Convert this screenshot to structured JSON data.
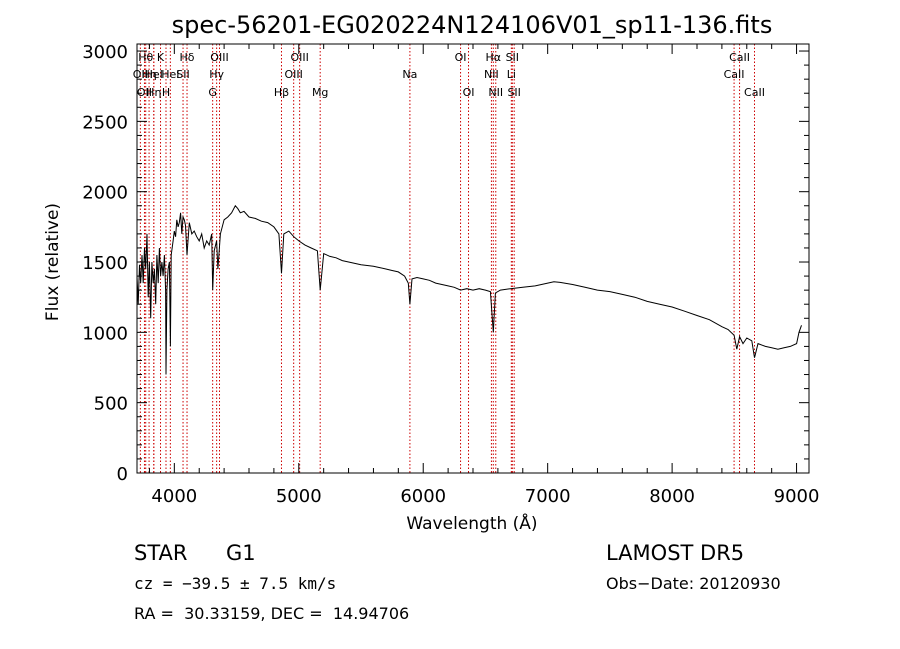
{
  "chart_data": {
    "type": "line",
    "title": "spec-56201-EG020224N124106V01_sp11-136.fits",
    "xlabel": "Wavelength (Å)",
    "ylabel": "Flux (relative)",
    "xlim": [
      3700,
      9100
    ],
    "ylim": [
      0,
      3050
    ],
    "x_ticks": [
      4000,
      5000,
      6000,
      7000,
      8000,
      9000
    ],
    "y_ticks": [
      0,
      500,
      1000,
      1500,
      2000,
      2500,
      3000
    ],
    "grid": false,
    "series": [
      {
        "x": [
          3700,
          3710,
          3720,
          3730,
          3740,
          3750,
          3760,
          3770,
          3780,
          3790,
          3800,
          3810,
          3820,
          3830,
          3840,
          3850,
          3860,
          3870,
          3880,
          3890,
          3900,
          3910,
          3920,
          3930,
          3933,
          3940,
          3950,
          3960,
          3968,
          3975,
          3990,
          4000,
          4010,
          4020,
          4030,
          4040,
          4050,
          4060,
          4070,
          4080,
          4090,
          4102,
          4110,
          4120,
          4140,
          4160,
          4180,
          4200,
          4220,
          4240,
          4260,
          4280,
          4300,
          4308,
          4320,
          4340,
          4350,
          4370,
          4400,
          4430,
          4460,
          4490,
          4510,
          4530,
          4560,
          4600,
          4650,
          4700,
          4750,
          4800,
          4840,
          4861,
          4880,
          4920,
          4960,
          5000,
          5050,
          5100,
          5150,
          5172,
          5200,
          5250,
          5300,
          5350,
          5400,
          5450,
          5500,
          5550,
          5600,
          5650,
          5700,
          5750,
          5800,
          5850,
          5880,
          5893,
          5910,
          5950,
          6000,
          6050,
          6100,
          6150,
          6200,
          6250,
          6300,
          6350,
          6400,
          6450,
          6500,
          6540,
          6563,
          6580,
          6620,
          6700,
          6800,
          6900,
          7000,
          7050,
          7100,
          7200,
          7300,
          7400,
          7500,
          7600,
          7700,
          7800,
          7900,
          8000,
          8100,
          8200,
          8300,
          8400,
          8450,
          8498,
          8520,
          8542,
          8570,
          8600,
          8640,
          8662,
          8690,
          8750,
          8800,
          8850,
          8900,
          8950,
          9000,
          9020,
          9040
        ],
        "y": [
          1400,
          1200,
          1480,
          1350,
          1550,
          1350,
          1600,
          1450,
          1700,
          1250,
          1500,
          1100,
          1500,
          1350,
          1450,
          1200,
          1550,
          1350,
          1600,
          1400,
          1500,
          1400,
          1550,
          1300,
          700,
          1300,
          1450,
          1500,
          900,
          1550,
          1650,
          1720,
          1680,
          1800,
          1750,
          1780,
          1850,
          1700,
          1820,
          1800,
          1760,
          1550,
          1650,
          1780,
          1700,
          1720,
          1680,
          1650,
          1700,
          1600,
          1650,
          1620,
          1700,
          1300,
          1580,
          1650,
          1450,
          1700,
          1800,
          1820,
          1850,
          1900,
          1880,
          1850,
          1860,
          1820,
          1810,
          1790,
          1780,
          1750,
          1700,
          1420,
          1700,
          1720,
          1680,
          1650,
          1620,
          1600,
          1580,
          1300,
          1560,
          1540,
          1530,
          1510,
          1500,
          1490,
          1480,
          1475,
          1470,
          1460,
          1450,
          1440,
          1430,
          1400,
          1350,
          1200,
          1380,
          1390,
          1380,
          1370,
          1350,
          1340,
          1330,
          1320,
          1300,
          1310,
          1300,
          1310,
          1300,
          1290,
          1000,
          1280,
          1300,
          1310,
          1320,
          1330,
          1350,
          1360,
          1355,
          1340,
          1320,
          1300,
          1290,
          1270,
          1250,
          1220,
          1200,
          1180,
          1150,
          1120,
          1090,
          1040,
          1020,
          980,
          880,
          970,
          920,
          960,
          940,
          820,
          920,
          900,
          890,
          880,
          890,
          900,
          920,
          1000,
          1050
        ],
        "color": "#000000"
      }
    ],
    "line_labels": [
      {
        "wavelength": 3727,
        "text": "OII",
        "row": 2
      },
      {
        "wavelength": 3760,
        "text": "OII",
        "row": 3
      },
      {
        "wavelength": 3770,
        "text": "Hθ",
        "row": 1
      },
      {
        "wavelength": 3797,
        "text": "Hη",
        "row": 2
      },
      {
        "wavelength": 3835,
        "text": "HeI",
        "row": 2
      },
      {
        "wavelength": 3835,
        "text": "Hη",
        "row": 3
      },
      {
        "wavelength": 3889,
        "text": "K",
        "row": 1
      },
      {
        "wavelength": 3933,
        "text": "H",
        "row": 3
      },
      {
        "wavelength": 3968,
        "text": "HeI",
        "row": 2
      },
      {
        "wavelength": 4070,
        "text": "SII",
        "row": 2
      },
      {
        "wavelength": 4102,
        "text": "Hδ",
        "row": 1
      },
      {
        "wavelength": 4308,
        "text": "G",
        "row": 3
      },
      {
        "wavelength": 4340,
        "text": "Hγ",
        "row": 2
      },
      {
        "wavelength": 4363,
        "text": "OIII",
        "row": 1
      },
      {
        "wavelength": 4861,
        "text": "Hβ",
        "row": 3
      },
      {
        "wavelength": 4959,
        "text": "OIII",
        "row": 2
      },
      {
        "wavelength": 5007,
        "text": "OIII",
        "row": 1
      },
      {
        "wavelength": 5172,
        "text": "Mg",
        "row": 3
      },
      {
        "wavelength": 5893,
        "text": "Na",
        "row": 2
      },
      {
        "wavelength": 6300,
        "text": "OI",
        "row": 1
      },
      {
        "wavelength": 6364,
        "text": "OI",
        "row": 3
      },
      {
        "wavelength": 6548,
        "text": "NII",
        "row": 2
      },
      {
        "wavelength": 6563,
        "text": "Hα",
        "row": 1
      },
      {
        "wavelength": 6583,
        "text": "NII",
        "row": 3
      },
      {
        "wavelength": 6708,
        "text": "Li",
        "row": 2
      },
      {
        "wavelength": 6716,
        "text": "SII",
        "row": 1
      },
      {
        "wavelength": 6731,
        "text": "SII",
        "row": 3
      },
      {
        "wavelength": 8498,
        "text": "CaII",
        "row": 2
      },
      {
        "wavelength": 8542,
        "text": "CaII",
        "row": 1
      },
      {
        "wavelength": 8662,
        "text": "CaII",
        "row": 3
      }
    ],
    "line_marker_color": "#cc0000",
    "line_marker_style": "dotted"
  },
  "info": {
    "object_class": "STAR",
    "subclass": "G1",
    "survey": "LAMOST DR5",
    "redshift": "cz = −39.5 ± 7.5 km/s",
    "obs_date": "Obs−Date: 20120930",
    "coords": "RA =  30.33159, DEC =  14.94706"
  }
}
